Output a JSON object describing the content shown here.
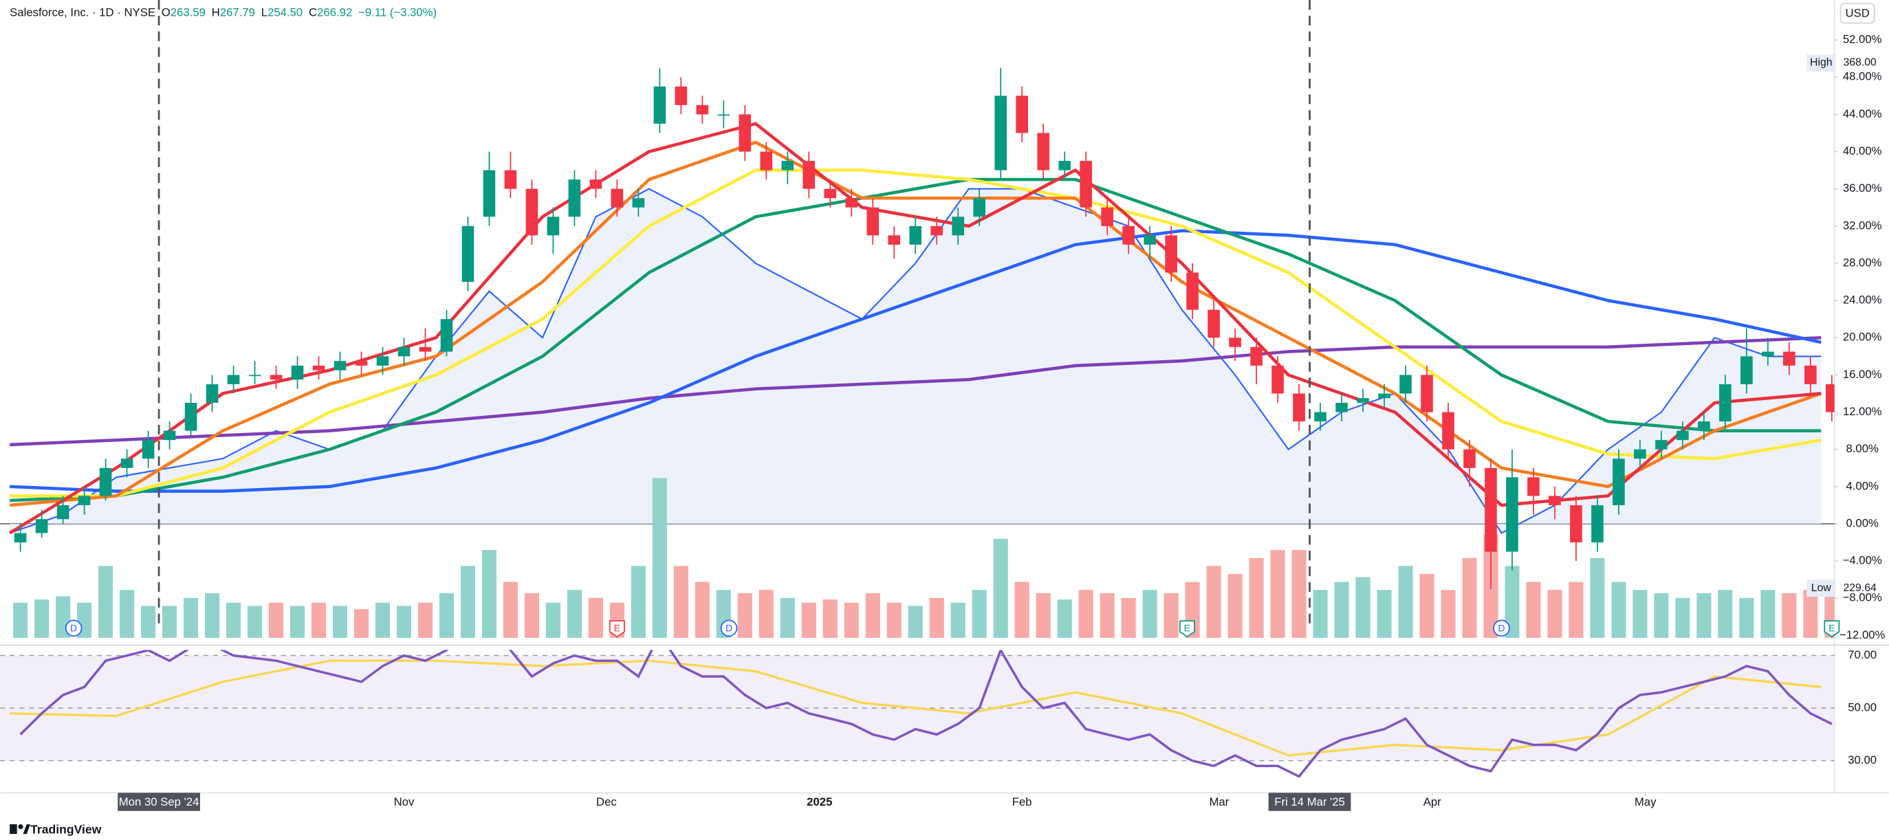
{
  "chart_data": {
    "type": "candlestick",
    "header": {
      "symbol": "Salesforce, Inc. · 1D · NYSE",
      "ohlc": [
        {
          "label": "O",
          "value": "263.59"
        },
        {
          "label": "H",
          "value": "267.79"
        },
        {
          "label": "L",
          "value": "254.50"
        },
        {
          "label": "C",
          "value": "266.92"
        }
      ],
      "change": "−9.11 (−3.30%)"
    },
    "currency": "USD",
    "xlim": [
      0,
      171.25
    ],
    "ylim": [
      -12,
      52
    ],
    "yticks": [
      {
        "value": 52,
        "label": "52.00%"
      },
      {
        "value": 48,
        "label": "48.00%"
      },
      {
        "value": 44,
        "label": "44.00%"
      },
      {
        "value": 40,
        "label": "40.00%"
      },
      {
        "value": 36,
        "label": "36.00%"
      },
      {
        "value": 32,
        "label": "32.00%"
      },
      {
        "value": 28,
        "label": "28.00%"
      },
      {
        "value": 24,
        "label": "24.00%"
      },
      {
        "value": 20,
        "label": "20.00%"
      },
      {
        "value": 16,
        "label": "16.00%"
      },
      {
        "value": 12,
        "label": "12.00%"
      },
      {
        "value": 8,
        "label": "8.00%"
      },
      {
        "value": 4,
        "label": "4.00%"
      },
      {
        "value": 0,
        "label": "0.00%"
      },
      {
        "value": -4,
        "label": "−4.00%"
      },
      {
        "value": -8,
        "label": "−8.00%"
      },
      {
        "value": -12,
        "label": "−12.00%"
      }
    ],
    "grid": false,
    "high_tag": {
      "label": "High",
      "value": "368.00"
    },
    "low_tag": {
      "label": "Low",
      "value": "229.64"
    },
    "up_color": "#089981",
    "down_color": "#f23645",
    "volume_up_color": "#92d2cc",
    "volume_down_color": "#f7a9a7",
    "open": [
      -2,
      -1,
      0.5,
      2,
      3,
      6,
      7,
      9,
      10,
      13,
      15,
      16,
      16,
      15.5,
      17,
      16.5,
      17.5,
      17,
      18,
      19,
      18.5,
      26,
      33,
      38,
      36,
      31,
      33,
      37,
      36,
      34,
      43,
      47,
      45,
      44,
      44,
      40,
      38,
      39,
      36,
      35,
      34,
      31,
      30,
      32,
      31,
      33,
      38,
      46,
      42,
      38,
      39,
      34,
      32,
      30,
      31,
      27,
      23,
      20,
      19,
      17,
      14,
      11,
      12,
      13,
      13.5,
      14,
      16,
      12,
      8,
      6,
      -3,
      5,
      3,
      2,
      -2,
      2,
      7,
      8,
      9,
      10,
      11,
      15,
      18,
      18.5,
      17,
      15
    ],
    "high": [
      0,
      1.5,
      3,
      4,
      7,
      8,
      10,
      11,
      14,
      16,
      17,
      17.5,
      17,
      18,
      18,
      18.5,
      18.5,
      19,
      20,
      21,
      23,
      33,
      40,
      40,
      37,
      34,
      38,
      38,
      37,
      36,
      49,
      48,
      46,
      45.5,
      45,
      41,
      40,
      40,
      37,
      36,
      35,
      32,
      33,
      33,
      34,
      36,
      49,
      47,
      43,
      40,
      40,
      35,
      33,
      32,
      32,
      28,
      24,
      21,
      20,
      18,
      15,
      13,
      14,
      14.5,
      15,
      17,
      17,
      13,
      9,
      7,
      8,
      6,
      4,
      3,
      3,
      8,
      9,
      10,
      11,
      12,
      16,
      21,
      20,
      19.5,
      18,
      16
    ],
    "low": [
      -3,
      -1.5,
      0,
      1,
      2.5,
      5,
      6,
      8,
      9.5,
      12,
      14,
      15,
      14.5,
      14.5,
      15.5,
      15.5,
      16,
      16,
      17,
      17.5,
      18,
      25,
      32,
      35,
      30,
      29,
      32,
      35,
      33,
      33,
      42,
      44,
      43,
      42.5,
      39,
      37,
      36.5,
      35,
      34,
      33,
      30,
      28.5,
      29,
      30,
      30,
      32,
      37,
      41,
      37,
      37,
      33,
      31,
      29,
      28.5,
      26,
      22,
      19,
      17.5,
      15,
      13,
      10,
      10,
      11,
      12,
      12.5,
      13,
      11,
      7,
      4,
      -7,
      -5,
      1,
      0.5,
      -4,
      -3,
      1,
      6,
      7,
      8,
      9,
      10,
      14,
      17,
      16,
      14,
      11
    ],
    "close": [
      -1,
      0.5,
      2,
      3,
      6,
      7,
      9,
      10,
      13,
      15,
      16,
      16,
      15.5,
      17,
      16.5,
      17.5,
      17,
      18,
      19,
      18.5,
      22,
      32,
      38,
      36,
      31,
      33,
      37,
      36,
      34,
      35,
      47,
      45,
      44,
      44,
      40,
      38,
      39,
      36,
      35,
      34,
      31,
      30,
      32,
      31,
      33,
      35,
      46,
      42,
      38,
      39,
      34,
      32,
      30,
      31,
      27,
      23,
      20,
      19,
      17,
      14,
      11,
      12,
      13,
      13.5,
      14,
      16,
      12,
      8,
      6,
      -3,
      5,
      3,
      2,
      -2,
      2,
      7,
      8,
      9,
      10,
      11,
      15,
      18,
      18.5,
      17,
      15,
      12
    ],
    "volume": [
      22,
      24,
      26,
      22,
      45,
      30,
      20,
      20,
      25,
      28,
      22,
      20,
      22,
      20,
      22,
      20,
      18,
      22,
      20,
      22,
      28,
      45,
      55,
      35,
      28,
      22,
      30,
      25,
      22,
      45,
      100,
      45,
      35,
      30,
      28,
      30,
      25,
      22,
      24,
      22,
      28,
      22,
      20,
      25,
      22,
      30,
      62,
      35,
      28,
      24,
      30,
      28,
      25,
      30,
      28,
      35,
      45,
      40,
      50,
      55,
      55,
      30,
      35,
      38,
      30,
      45,
      40,
      30,
      50,
      65,
      45,
      35,
      30,
      35,
      50,
      35,
      30,
      28,
      25,
      28,
      30,
      25,
      30,
      28,
      30,
      35
    ],
    "ma_x": [
      0,
      10,
      20,
      30,
      40,
      50,
      60,
      70,
      80,
      90,
      100,
      110,
      120,
      130,
      140,
      150,
      160,
      170
    ],
    "moving_averages": [
      {
        "color": "#7e3fb8",
        "values": [
          8.5,
          9,
          9.5,
          10,
          11,
          12,
          13.5,
          14.5,
          15,
          15.5,
          17,
          17.5,
          18.5,
          19,
          19,
          19,
          19.5,
          20
        ]
      },
      {
        "color": "#2962ff",
        "values": [
          4,
          3.5,
          3.5,
          4,
          6,
          9,
          13,
          18,
          22,
          26,
          30,
          31.5,
          31,
          30,
          27,
          24,
          22,
          19.5
        ]
      },
      {
        "color": "#0f9d6e",
        "values": [
          2.5,
          3,
          5,
          8,
          12,
          18,
          27,
          33,
          35,
          37,
          37,
          33,
          29,
          24,
          16,
          11,
          10,
          10
        ]
      },
      {
        "color": "#ffeb3b",
        "values": [
          3,
          3,
          6,
          12,
          16,
          22,
          32,
          38,
          38,
          37,
          35,
          32,
          27,
          19,
          11,
          7.5,
          7,
          9
        ]
      },
      {
        "color": "#f57c1f",
        "values": [
          2,
          3,
          10,
          15,
          18,
          26,
          37,
          41,
          35,
          35,
          35,
          26,
          20,
          14,
          6,
          4,
          10,
          14
        ]
      },
      {
        "color": "#e8313c",
        "values": [
          -1,
          6,
          14,
          16.5,
          20,
          33,
          40,
          43,
          34,
          32,
          38,
          28,
          16,
          12,
          2,
          3,
          13,
          14
        ]
      }
    ],
    "compare_x": [
      0,
      5,
      10,
      15,
      20,
      25,
      30,
      35,
      40,
      45,
      50,
      55,
      60,
      65,
      70,
      75,
      80,
      85,
      90,
      95,
      100,
      105,
      110,
      115,
      120,
      125,
      130,
      135,
      140,
      145,
      150,
      155,
      160,
      165,
      170
    ],
    "compare": {
      "color": "#2962ff",
      "fill": "#e9eefb",
      "values": [
        -1,
        1,
        5,
        6,
        7,
        10,
        8,
        10,
        18,
        25,
        20,
        33,
        36,
        33,
        28,
        25,
        22,
        28,
        36,
        36,
        34,
        32,
        23,
        16,
        8,
        12,
        14,
        8,
        -1,
        2,
        8,
        12,
        20,
        18,
        18
      ]
    },
    "rsi": {
      "color": "#7e57c2",
      "ma_color": "#f9d648",
      "band_color": "#f2eefa",
      "ylim": [
        17.8,
        72.1
      ],
      "yticks": [
        {
          "value": 70,
          "label": "70.00"
        },
        {
          "value": 50,
          "label": "50.00"
        },
        {
          "value": 30,
          "label": "30.00"
        }
      ],
      "values": [
        40,
        48,
        55,
        58,
        68,
        70,
        72,
        68,
        73,
        74,
        70,
        69,
        68,
        66,
        64,
        62,
        60,
        66,
        70,
        68,
        72,
        80,
        80,
        72,
        62,
        67,
        70,
        68,
        68,
        62,
        78,
        66,
        62,
        62,
        55,
        50,
        52,
        48,
        46,
        44,
        40,
        38,
        42,
        40,
        44,
        50,
        72,
        58,
        50,
        52,
        42,
        40,
        38,
        40,
        34,
        30,
        28,
        32,
        28,
        28,
        24,
        34,
        38,
        40,
        42,
        46,
        36,
        32,
        28,
        26,
        38,
        36,
        36,
        34,
        40,
        50,
        55,
        56,
        58,
        60,
        62,
        66,
        64,
        55,
        48,
        44
      ],
      "ma_values": [
        48,
        47,
        60,
        68,
        68,
        66,
        68,
        64,
        52,
        48,
        56,
        48,
        32,
        36,
        34,
        40,
        62,
        58
      ]
    },
    "x_labels": [
      {
        "value": 37,
        "label": "Nov"
      },
      {
        "value": 56,
        "label": "Dec"
      },
      {
        "value": 76,
        "label": "2025"
      },
      {
        "value": 95,
        "label": "Feb"
      },
      {
        "value": 113.5,
        "label": "Mar"
      },
      {
        "value": 133.5,
        "label": "Apr"
      },
      {
        "value": 153.5,
        "label": "May"
      }
    ],
    "crosshair_dates": [
      {
        "value": 14,
        "label": "Mon 30 Sep '24"
      },
      {
        "value": 122,
        "label": "Fri 14 Mar '25"
      }
    ],
    "events": [
      {
        "value": 6,
        "label": "D",
        "color": "#2962ff"
      },
      {
        "value": 57,
        "label": "E",
        "color": "#f23645"
      },
      {
        "value": 67.5,
        "label": "D",
        "color": "#2962ff"
      },
      {
        "value": 110.5,
        "label": "E",
        "color": "#089981"
      },
      {
        "value": 140,
        "label": "D",
        "color": "#2962ff"
      },
      {
        "value": 171,
        "label": "E",
        "color": "#089981"
      }
    ],
    "brand": "TradingView"
  }
}
